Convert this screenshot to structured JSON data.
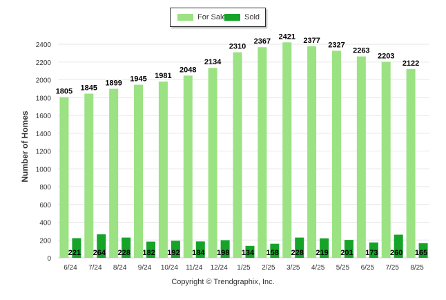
{
  "legend": {
    "for_sale_label": "For Sale",
    "sold_label": "Sold"
  },
  "footer": {
    "copyright": "Copyright © Trendgraphix, Inc."
  },
  "colors": {
    "for_sale": "#9be283",
    "sold": "#15a428",
    "grid": "#e6e6e6",
    "text": "#333333"
  },
  "chart_data": {
    "type": "bar",
    "title": "",
    "xlabel": "",
    "ylabel": "Number of Homes",
    "ylim": [
      0,
      2400
    ],
    "yticks": [
      0,
      200,
      400,
      600,
      800,
      1000,
      1200,
      1400,
      1600,
      1800,
      2000,
      2200,
      2400
    ],
    "grid": true,
    "legend_position": "top-center",
    "categories": [
      "6/24",
      "7/24",
      "8/24",
      "9/24",
      "10/24",
      "11/24",
      "12/24",
      "1/25",
      "2/25",
      "3/25",
      "4/25",
      "5/25",
      "6/25",
      "7/25",
      "8/25"
    ],
    "series": [
      {
        "name": "For Sale",
        "values": [
          1805,
          1845,
          1899,
          1945,
          1981,
          2048,
          2134,
          2310,
          2367,
          2421,
          2377,
          2327,
          2263,
          2203,
          2122
        ]
      },
      {
        "name": "Sold",
        "values": [
          221,
          264,
          228,
          182,
          192,
          184,
          198,
          134,
          158,
          228,
          219,
          201,
          173,
          260,
          165
        ]
      }
    ]
  }
}
